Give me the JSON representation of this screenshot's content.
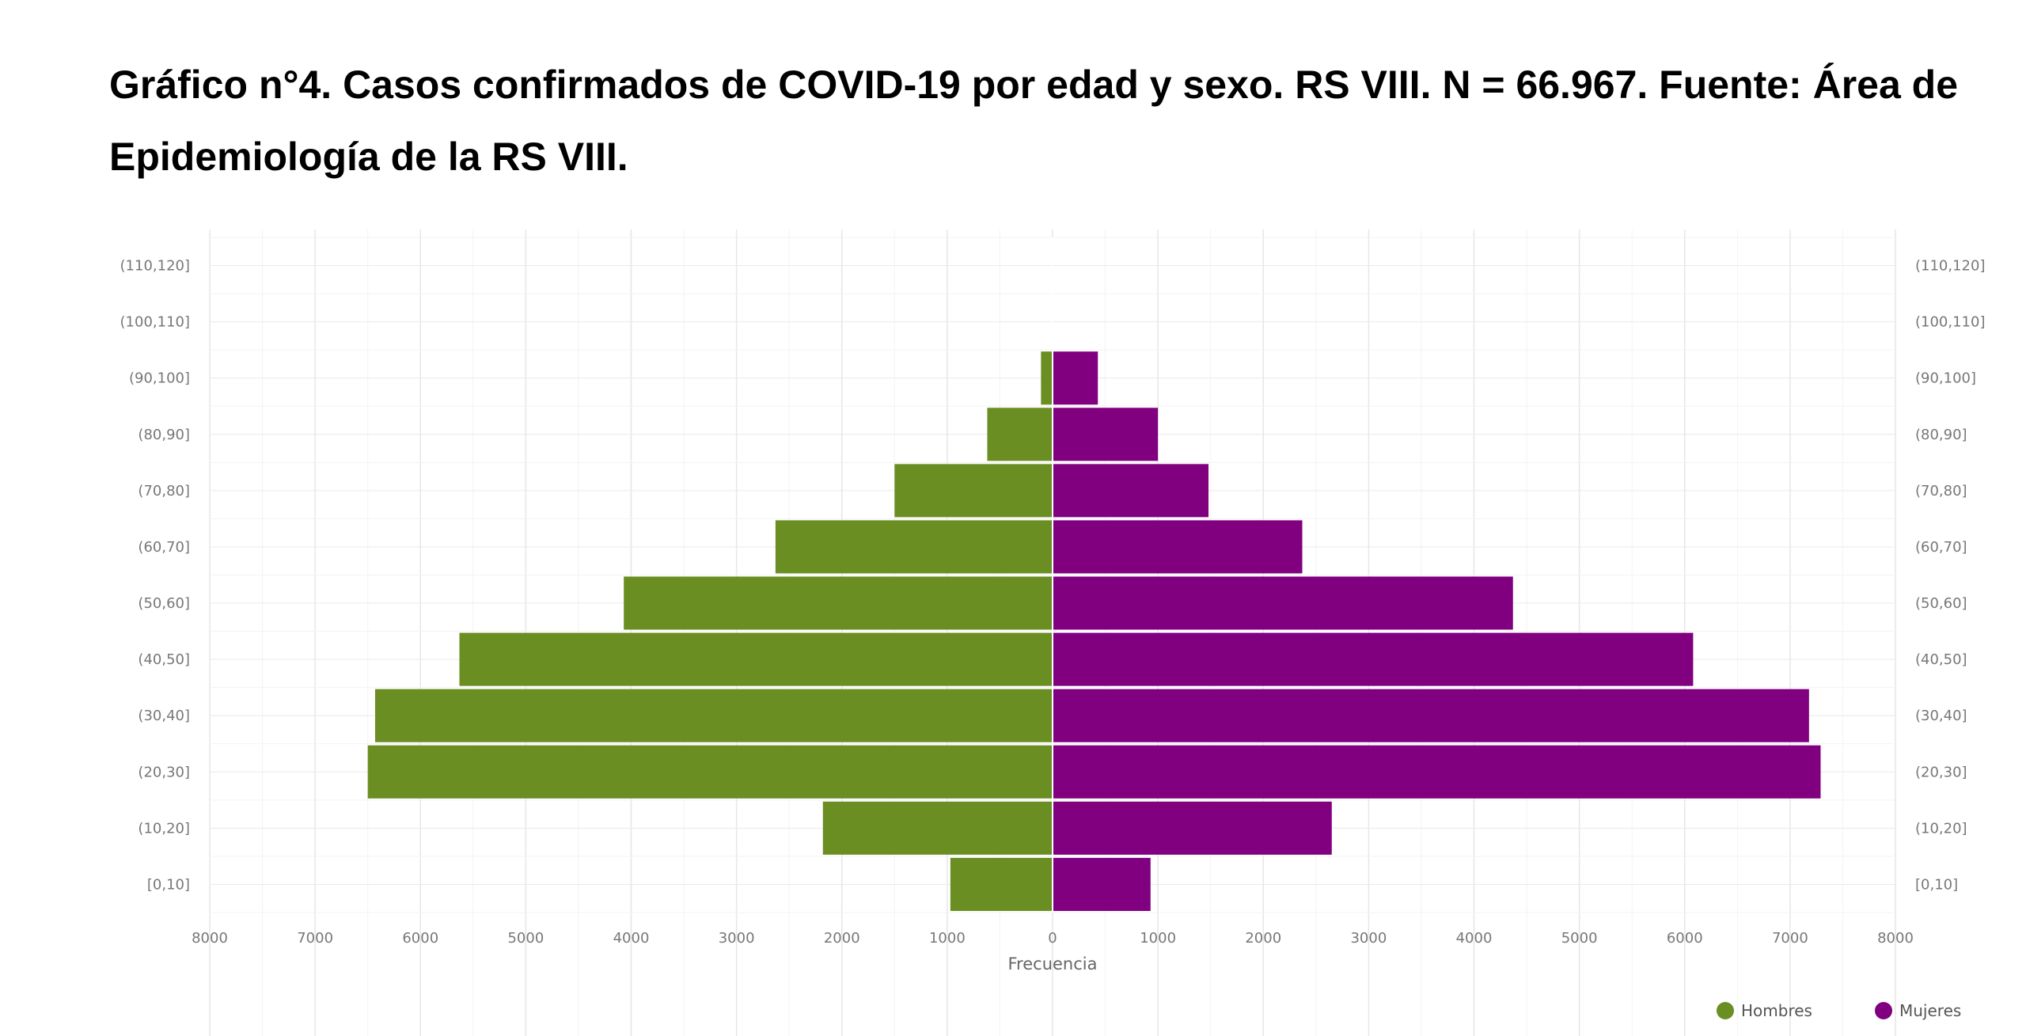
{
  "title": "Gráfico n°4. Casos confirmados de COVID-19 por edad y sexo. RS VIII. N = 66.967. Fuente: Área de Epidemiología de la RS VIII.",
  "chart_data": {
    "type": "bar",
    "orientation": "horizontal",
    "layout": "population-pyramid",
    "categories": [
      "[0,10]",
      "(10,20]",
      "(20,30]",
      "(30,40]",
      "(40,50]",
      "(50,60]",
      "(60,70]",
      "(70,80]",
      "(80,90]",
      "(90,100]",
      "(100,110]",
      "(110,120]"
    ],
    "series": [
      {
        "name": "Hombres",
        "color": "#6B8E23",
        "side": "left",
        "values": [
          970,
          2180,
          6500,
          6430,
          5630,
          4070,
          2630,
          1500,
          620,
          110,
          0,
          0
        ]
      },
      {
        "name": "Mujeres",
        "color": "#800080",
        "side": "right",
        "values": [
          930,
          2650,
          7290,
          7180,
          6080,
          4370,
          2370,
          1480,
          1000,
          430,
          0,
          0
        ]
      }
    ],
    "x_ticks": [
      "8000",
      "7000",
      "6000",
      "5000",
      "4000",
      "3000",
      "2000",
      "1000",
      "0",
      "1000",
      "2000",
      "3000",
      "4000",
      "5000",
      "6000",
      "7000",
      "8000"
    ],
    "xlabel": "Frecuencia",
    "xlim": [
      -8000,
      8000
    ],
    "grid": true,
    "legend_position": "bottom-right"
  }
}
